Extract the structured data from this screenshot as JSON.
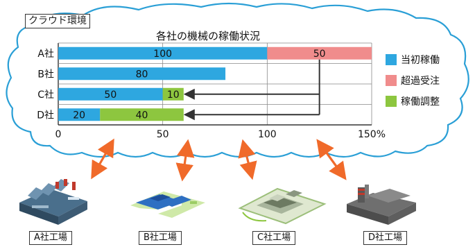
{
  "cloud": {
    "label": "クラウド環境"
  },
  "chart_data": {
    "type": "bar",
    "stacked": true,
    "orientation": "horizontal",
    "title": "各社の機械の稼働状況",
    "categories": [
      "A社",
      "B社",
      "C社",
      "D社"
    ],
    "series": [
      {
        "name": "当初稼働",
        "color": "#2ea7e0",
        "values": [
          100,
          80,
          50,
          20
        ]
      },
      {
        "name": "超過受注",
        "color": "#f08c8c",
        "values": [
          50,
          0,
          0,
          0
        ]
      },
      {
        "name": "稼働調整",
        "color": "#8dc63f",
        "values": [
          0,
          0,
          10,
          40
        ]
      }
    ],
    "data_labels": [
      [
        "100",
        "50",
        ""
      ],
      [
        "80",
        "",
        ""
      ],
      [
        "50",
        "",
        "10"
      ],
      [
        "20",
        "",
        "40"
      ]
    ],
    "x_ticks": [
      "0",
      "50",
      "100",
      "150%"
    ],
    "xlim": [
      0,
      150
    ],
    "grid": true,
    "legend_position": "right"
  },
  "factories": [
    {
      "label": "A社工場"
    },
    {
      "label": "B社工場"
    },
    {
      "label": "C社工場"
    },
    {
      "label": "D社工場"
    }
  ],
  "colors": {
    "arrow": "#f06a2a",
    "cloud_stroke": "#2a9fd6"
  }
}
